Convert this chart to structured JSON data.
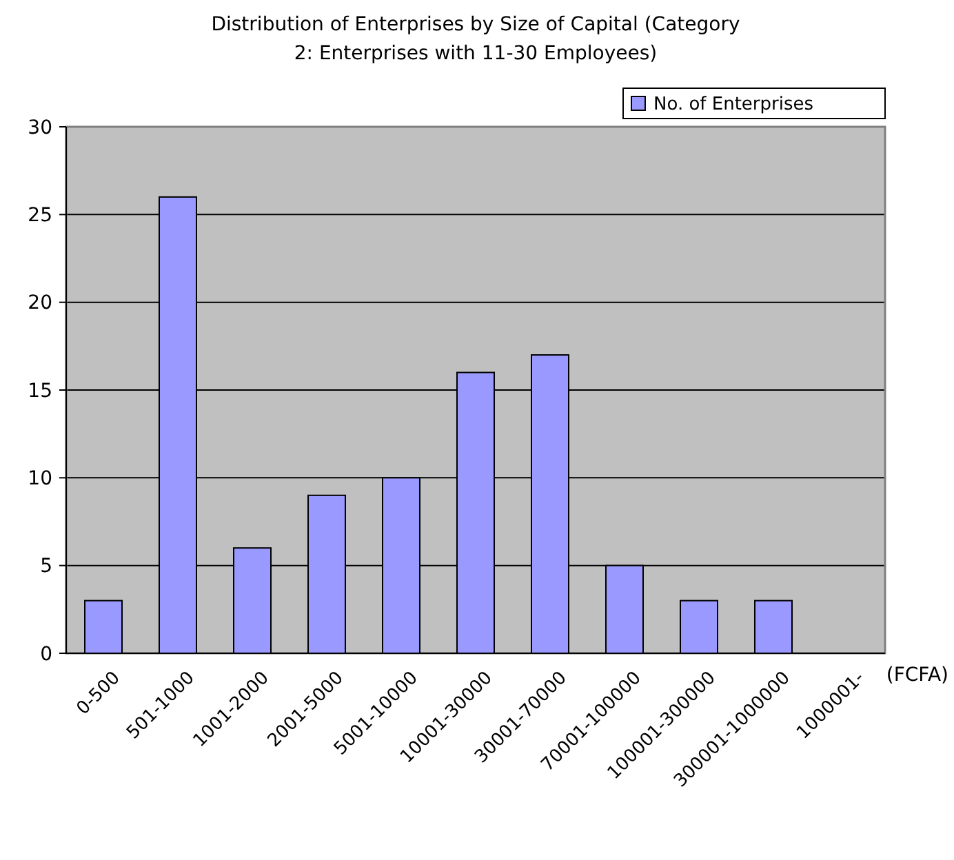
{
  "chart_data": {
    "type": "bar",
    "title": "Distribution of Enterprises by Size of Capital (Category 2: Enterprises with 11-30 Employees)",
    "xlabel": "(FCFA)",
    "categories": [
      "0-500",
      "501-1000",
      "1001-2000",
      "2001-5000",
      "5001-10000",
      "10001-30000",
      "30001-70000",
      "70001-100000",
      "100001-300000",
      "300001-1000000",
      "1000001-"
    ],
    "series": [
      {
        "name": "No. of Enterprises",
        "color": "#9999ff",
        "values": [
          3,
          26,
          6,
          9,
          10,
          16,
          17,
          5,
          3,
          3,
          0
        ]
      }
    ],
    "ylim": [
      0,
      30
    ],
    "yticks": [
      0,
      5,
      10,
      15,
      20,
      25,
      30
    ],
    "grid": "y",
    "legend": "top right"
  }
}
